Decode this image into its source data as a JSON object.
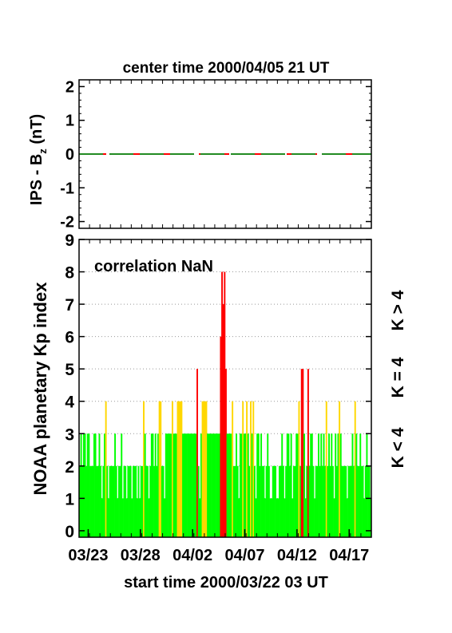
{
  "chart_data": [
    {
      "type": "line",
      "title": "center time 2000/04/05 21 UT",
      "ylabel_main": "IPS - B",
      "ylabel_sub": "z",
      "ylabel_unit": " (nT)",
      "ylim": [
        -2.2,
        2.2
      ],
      "yticks": [
        "2",
        "1",
        "0",
        "-1",
        "-2"
      ],
      "ytick_values": [
        2,
        1,
        0,
        -1,
        -2
      ],
      "series": [
        {
          "color": "#228b22",
          "style": "dashed",
          "x": [
            0,
            28
          ],
          "y": [
            0,
            0
          ]
        },
        {
          "color": "#ff0000",
          "style": "dashed",
          "x": [
            0,
            28
          ],
          "y": [
            0,
            0
          ]
        }
      ],
      "grid": false
    },
    {
      "type": "bar",
      "annotation": "correlation NaN",
      "ylabel": "NOAA planetary Kp index",
      "xlabel": "start time 2000/03/22 03 UT",
      "xticks": [
        "03/23",
        "03/28",
        "04/02",
        "04/07",
        "04/12",
        "04/17"
      ],
      "xtick_days": [
        0.875,
        5.875,
        10.875,
        15.875,
        20.875,
        25.875
      ],
      "yticks": [
        "0",
        "1",
        "2",
        "3",
        "4",
        "5",
        "6",
        "7",
        "8",
        "9"
      ],
      "ylim": [
        -0.2,
        9
      ],
      "xlim_days": [
        0,
        28
      ],
      "grid": "dotted horizontal",
      "legend": [
        {
          "label": "K < 4",
          "color": "#00ff00"
        },
        {
          "label": "K = 4",
          "color": "#ffd700"
        },
        {
          "label": "K > 4",
          "color": "#ff0000"
        }
      ],
      "colors": {
        "low": "#00ff00",
        "mid": "#ffd700",
        "high": "#ff0000"
      },
      "bin_hours": 3,
      "bin_count": 224,
      "kp_values": [
        2,
        3,
        2,
        3,
        3,
        2,
        3,
        3,
        2,
        2,
        2,
        3,
        3,
        2,
        2,
        3,
        2,
        1,
        2,
        3,
        4,
        2,
        1,
        2,
        2,
        2,
        2,
        3,
        2,
        1,
        2,
        2,
        3,
        1,
        2,
        2,
        1,
        2,
        2,
        2,
        1,
        2,
        2,
        2,
        1,
        2,
        1,
        2,
        2,
        4,
        3,
        2,
        2,
        1,
        2,
        3,
        3,
        2,
        3,
        2,
        3,
        4,
        4,
        2,
        2,
        1,
        3,
        3,
        3,
        3,
        3,
        4,
        3,
        3,
        3,
        4,
        4,
        4,
        4,
        3,
        3,
        3,
        3,
        3,
        3,
        3,
        3,
        3,
        3,
        3,
        5,
        2,
        1,
        3,
        4,
        4,
        4,
        4,
        3,
        3,
        3,
        3,
        3,
        3,
        3,
        3,
        3,
        3,
        6,
        8,
        7,
        8,
        5,
        3,
        3,
        3,
        3,
        4,
        2,
        2,
        3,
        2,
        1,
        3,
        3,
        4,
        3,
        3,
        4,
        3,
        2,
        4,
        3,
        4,
        2,
        1,
        3,
        3,
        2,
        3,
        2,
        2,
        1,
        2,
        3,
        2,
        1,
        1,
        2,
        2,
        2,
        1,
        1,
        2,
        2,
        3,
        2,
        1,
        2,
        3,
        3,
        2,
        3,
        1,
        2,
        2,
        3,
        3,
        4,
        2,
        5,
        5,
        3,
        1,
        2,
        5,
        2,
        3,
        3,
        2,
        1,
        2,
        2,
        3,
        2,
        3,
        2,
        3,
        2,
        4,
        2,
        3,
        2,
        3,
        2,
        1,
        3,
        2,
        3,
        4,
        3,
        2,
        2,
        2,
        2,
        1,
        2,
        2,
        2,
        3,
        2,
        4,
        3,
        2,
        2,
        3,
        2,
        2,
        1,
        2,
        3,
        2,
        2,
        1
      ]
    }
  ]
}
